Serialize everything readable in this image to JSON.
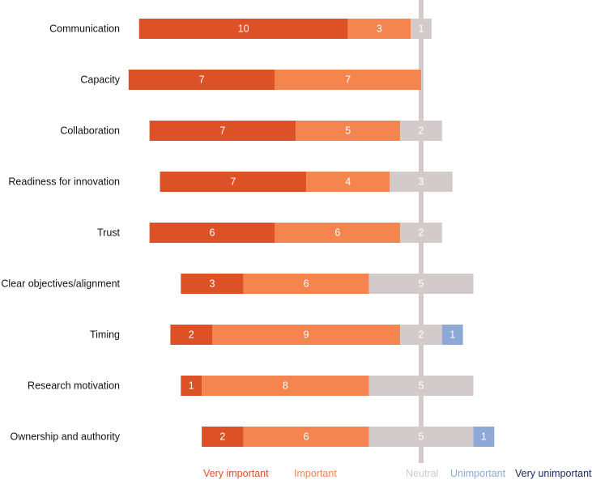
{
  "chart_data": {
    "type": "bar",
    "stacked": "diverging",
    "orientation": "horizontal",
    "title": "",
    "xlabel": "",
    "ylabel": "",
    "grid": false,
    "legend_position": "bottom",
    "categories": [
      "Communication",
      "Capacity",
      "Collaboration",
      "Readiness for innovation",
      "Trust",
      "Clear objectives/alignment",
      "Timing",
      "Research motivation",
      "Ownership and authority"
    ],
    "series": [
      {
        "name": "Very important",
        "color": "#dd5127",
        "values": [
          10,
          7,
          7,
          7,
          6,
          3,
          2,
          1,
          2
        ]
      },
      {
        "name": "Important",
        "color": "#f5854f",
        "values": [
          3,
          7,
          5,
          4,
          6,
          6,
          9,
          8,
          6
        ]
      },
      {
        "name": "Neutral",
        "color": "#d3cbcb",
        "values": [
          1,
          0,
          2,
          3,
          2,
          5,
          2,
          5,
          5
        ]
      },
      {
        "name": "Unimportant",
        "color": "#8ea9d6",
        "values": [
          0,
          0,
          0,
          0,
          0,
          0,
          1,
          0,
          1
        ]
      },
      {
        "name": "Very unimportant",
        "color": "#1f2a6b",
        "values": [
          0,
          0,
          0,
          0,
          0,
          0,
          0,
          0,
          0
        ]
      }
    ],
    "neutral_line_color": "#d3cbcb",
    "label_color": "#ffffff"
  }
}
